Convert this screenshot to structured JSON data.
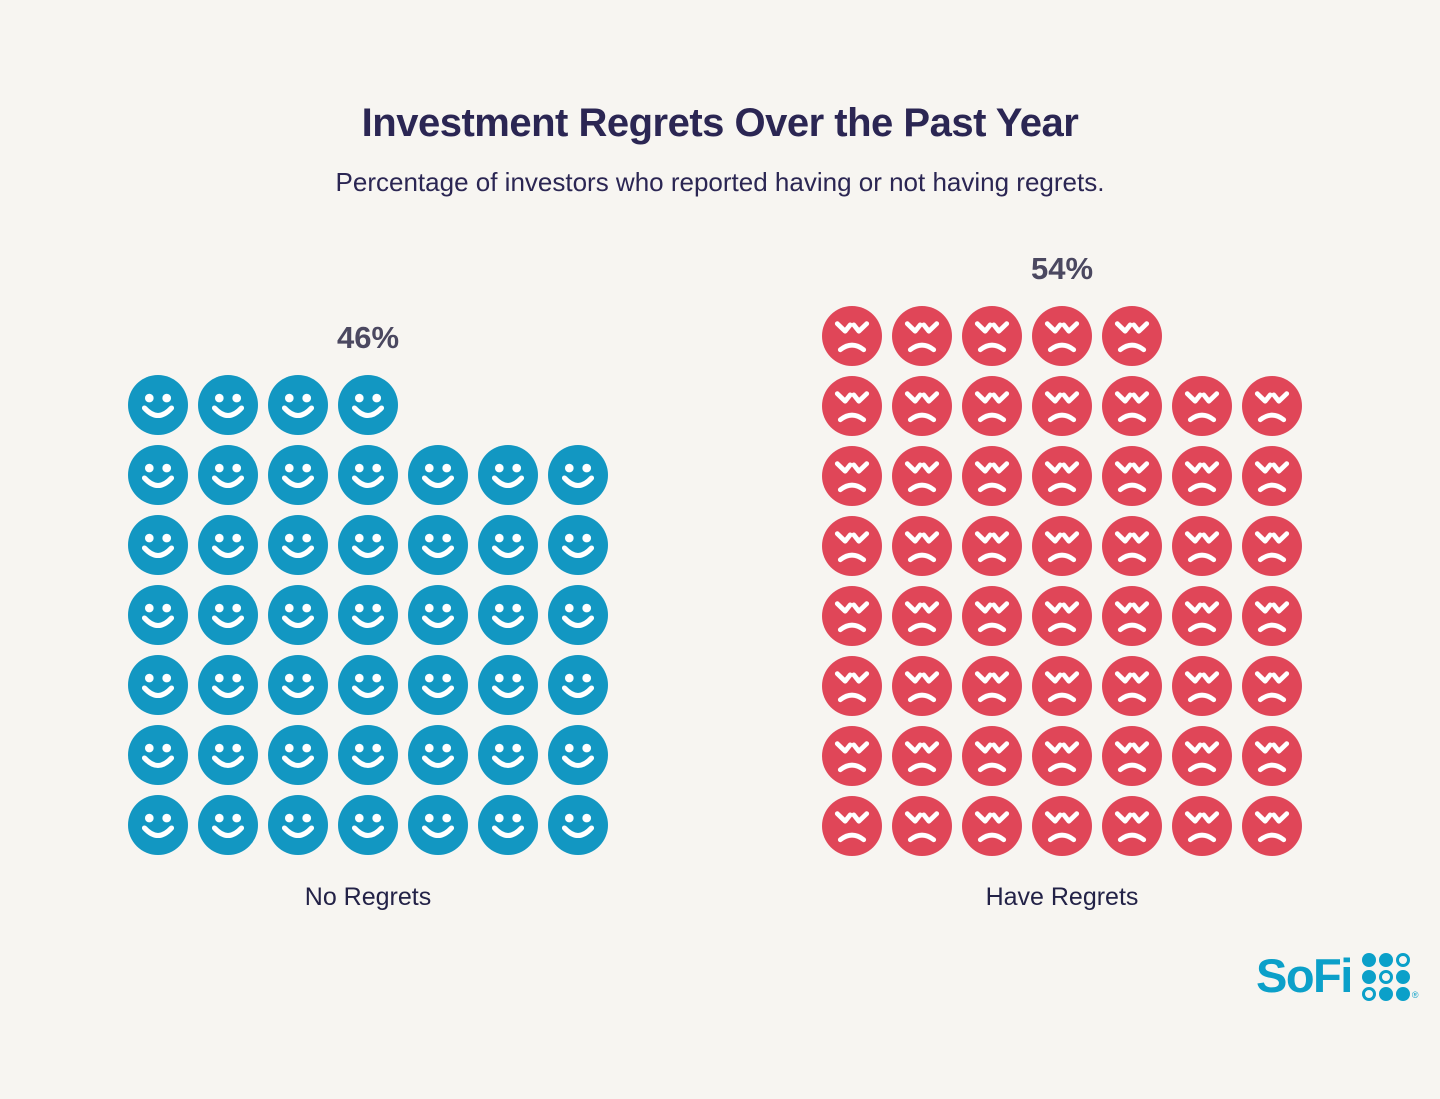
{
  "chart_data": {
    "type": "pictogram",
    "title": "Investment Regrets Over the Past Year",
    "subtitle": "Percentage of investors who reported having or not having regrets.",
    "categories": [
      "No Regrets",
      "Have Regrets"
    ],
    "values": [
      46,
      54
    ],
    "legend_position": "none",
    "grid": false,
    "series": [
      {
        "label": "No Regrets",
        "percent_label": "46%",
        "value": 46,
        "icon": "smiley-face",
        "color": "#1297C2",
        "columns": 7,
        "rows": [
          4,
          7,
          7,
          7,
          7,
          7,
          7
        ]
      },
      {
        "label": "Have Regrets",
        "percent_label": "54%",
        "value": 54,
        "icon": "angry-face",
        "color": "#E04658",
        "columns": 7,
        "rows": [
          5,
          7,
          7,
          7,
          7,
          7,
          7,
          7
        ]
      }
    ]
  },
  "colors": {
    "background": "#F7F5F1",
    "title_text": "#2B2653",
    "percent_text": "#4B4860",
    "category_text": "#232247",
    "smiley": "#1297C2",
    "angry": "#E04658",
    "logo": "#0BA0C9"
  },
  "branding": {
    "logo_text": "SoFi",
    "trademark": "®",
    "dot_grid_pattern": [
      "filled",
      "filled",
      "ring",
      "filled",
      "ring",
      "filled",
      "ring",
      "filled",
      "filled"
    ]
  }
}
